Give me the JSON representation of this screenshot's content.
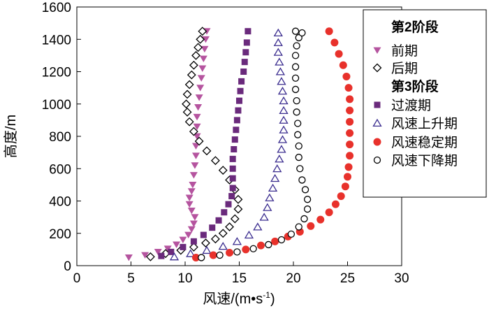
{
  "chart_data": {
    "type": "scatter",
    "xlabel_main": "风速/(m•s",
    "xlabel_sup": "-1",
    "xlabel_tail": ")",
    "ylabel": "高度/m",
    "xlim": [
      0,
      30
    ],
    "ylim": [
      0,
      1600
    ],
    "xticks": [
      0,
      5,
      10,
      15,
      20,
      25,
      30
    ],
    "yticks": [
      0,
      200,
      400,
      600,
      800,
      1000,
      1200,
      1400,
      1600
    ],
    "legend": {
      "position": "top-right",
      "groups": [
        {
          "heading": "第2阶段",
          "entries": [
            "前期",
            "后期"
          ]
        },
        {
          "heading": "第3阶段",
          "entries": [
            "过渡期",
            "风速上升期",
            "风速稳定期",
            "风速下降期"
          ]
        }
      ]
    },
    "series": [
      {
        "name": "前期",
        "marker": "triangle-down",
        "color": "#b5549f",
        "points": [
          [
            4.8,
            50
          ],
          [
            6.3,
            65
          ],
          [
            7.5,
            85
          ],
          [
            8.4,
            105
          ],
          [
            9.2,
            130
          ],
          [
            9.8,
            160
          ],
          [
            10.3,
            190
          ],
          [
            10.6,
            225
          ],
          [
            10.8,
            260
          ],
          [
            10.9,
            300
          ],
          [
            10.6,
            340
          ],
          [
            10.4,
            380
          ],
          [
            10.4,
            420
          ],
          [
            10.6,
            460
          ],
          [
            10.7,
            500
          ],
          [
            10.8,
            560
          ],
          [
            10.9,
            620
          ],
          [
            11.0,
            680
          ],
          [
            11.0,
            740
          ],
          [
            11.1,
            800
          ],
          [
            11.1,
            860
          ],
          [
            11.1,
            920
          ],
          [
            11.2,
            980
          ],
          [
            11.3,
            1040
          ],
          [
            11.4,
            1100
          ],
          [
            11.5,
            1160
          ],
          [
            11.6,
            1220
          ],
          [
            11.7,
            1280
          ],
          [
            11.8,
            1340
          ],
          [
            11.9,
            1400
          ],
          [
            12.0,
            1450
          ]
        ]
      },
      {
        "name": "后期",
        "marker": "diamond-open",
        "color": "#000000",
        "points": [
          [
            6.8,
            55
          ],
          [
            8.2,
            75
          ],
          [
            9.6,
            95
          ],
          [
            10.8,
            115
          ],
          [
            11.9,
            140
          ],
          [
            12.8,
            165
          ],
          [
            13.5,
            200
          ],
          [
            14.1,
            240
          ],
          [
            14.6,
            290
          ],
          [
            14.9,
            350
          ],
          [
            14.9,
            410
          ],
          [
            14.6,
            470
          ],
          [
            14.1,
            530
          ],
          [
            13.5,
            590
          ],
          [
            12.8,
            650
          ],
          [
            12.0,
            710
          ],
          [
            11.3,
            770
          ],
          [
            10.8,
            830
          ],
          [
            10.4,
            890
          ],
          [
            10.2,
            950
          ],
          [
            10.1,
            1000
          ],
          [
            10.2,
            1060
          ],
          [
            10.4,
            1120
          ],
          [
            10.6,
            1180
          ],
          [
            10.8,
            1240
          ],
          [
            11.0,
            1300
          ],
          [
            11.2,
            1350
          ],
          [
            11.4,
            1400
          ],
          [
            11.6,
            1450
          ]
        ]
      },
      {
        "name": "过渡期",
        "marker": "square",
        "color": "#6a2a7c",
        "points": [
          [
            7.8,
            60
          ],
          [
            8.7,
            85
          ],
          [
            9.8,
            115
          ],
          [
            10.8,
            150
          ],
          [
            11.7,
            190
          ],
          [
            12.5,
            235
          ],
          [
            13.1,
            280
          ],
          [
            13.6,
            330
          ],
          [
            14.0,
            380
          ],
          [
            14.3,
            430
          ],
          [
            14.4,
            480
          ],
          [
            14.4,
            540
          ],
          [
            14.4,
            600
          ],
          [
            14.4,
            660
          ],
          [
            14.5,
            720
          ],
          [
            14.6,
            780
          ],
          [
            14.7,
            840
          ],
          [
            14.8,
            900
          ],
          [
            14.9,
            960
          ],
          [
            15.0,
            1020
          ],
          [
            15.1,
            1080
          ],
          [
            15.2,
            1140
          ],
          [
            15.4,
            1200
          ],
          [
            15.5,
            1260
          ],
          [
            15.6,
            1320
          ],
          [
            15.7,
            1380
          ],
          [
            15.8,
            1450
          ]
        ]
      },
      {
        "name": "风速上升期",
        "marker": "triangle-open",
        "color": "#3b2d8f",
        "points": [
          [
            9.0,
            55
          ],
          [
            10.5,
            75
          ],
          [
            12.0,
            95
          ],
          [
            13.5,
            120
          ],
          [
            14.8,
            150
          ],
          [
            15.9,
            190
          ],
          [
            16.7,
            240
          ],
          [
            17.3,
            300
          ],
          [
            17.6,
            360
          ],
          [
            17.8,
            420
          ],
          [
            18.1,
            480
          ],
          [
            18.3,
            540
          ],
          [
            18.5,
            600
          ],
          [
            18.7,
            660
          ],
          [
            18.9,
            720
          ],
          [
            19.0,
            780
          ],
          [
            19.1,
            840
          ],
          [
            19.1,
            900
          ],
          [
            19.1,
            960
          ],
          [
            19.1,
            1020
          ],
          [
            19.0,
            1080
          ],
          [
            18.9,
            1140
          ],
          [
            18.8,
            1200
          ],
          [
            18.7,
            1260
          ],
          [
            18.6,
            1320
          ],
          [
            18.6,
            1380
          ],
          [
            18.6,
            1440
          ]
        ]
      },
      {
        "name": "风速稳定期",
        "marker": "circle-filled",
        "color": "#e8312b",
        "points": [
          [
            11.0,
            50
          ],
          [
            12.6,
            65
          ],
          [
            14.1,
            80
          ],
          [
            15.6,
            100
          ],
          [
            17.0,
            125
          ],
          [
            18.3,
            150
          ],
          [
            19.5,
            180
          ],
          [
            20.6,
            210
          ],
          [
            21.6,
            245
          ],
          [
            22.5,
            285
          ],
          [
            23.3,
            330
          ],
          [
            23.9,
            380
          ],
          [
            24.4,
            430
          ],
          [
            24.8,
            490
          ],
          [
            25.0,
            550
          ],
          [
            25.1,
            610
          ],
          [
            25.2,
            680
          ],
          [
            25.2,
            750
          ],
          [
            25.2,
            820
          ],
          [
            25.2,
            890
          ],
          [
            25.2,
            960
          ],
          [
            25.2,
            1030
          ],
          [
            25.1,
            1100
          ],
          [
            24.9,
            1170
          ],
          [
            24.6,
            1240
          ],
          [
            24.2,
            1310
          ],
          [
            23.8,
            1380
          ],
          [
            23.3,
            1450
          ]
        ]
      },
      {
        "name": "风速下降期",
        "marker": "circle-open",
        "color": "#000000",
        "points": [
          [
            11.5,
            50
          ],
          [
            13.2,
            65
          ],
          [
            14.8,
            85
          ],
          [
            16.3,
            105
          ],
          [
            17.7,
            130
          ],
          [
            18.9,
            160
          ],
          [
            19.8,
            195
          ],
          [
            20.5,
            240
          ],
          [
            21.0,
            290
          ],
          [
            21.3,
            350
          ],
          [
            21.3,
            410
          ],
          [
            21.1,
            470
          ],
          [
            20.8,
            530
          ],
          [
            20.6,
            600
          ],
          [
            20.5,
            670
          ],
          [
            20.5,
            740
          ],
          [
            20.4,
            810
          ],
          [
            20.4,
            880
          ],
          [
            20.3,
            950
          ],
          [
            20.3,
            1020
          ],
          [
            20.2,
            1090
          ],
          [
            20.2,
            1160
          ],
          [
            20.2,
            1230
          ],
          [
            20.2,
            1300
          ],
          [
            20.3,
            1360
          ],
          [
            20.5,
            1410
          ],
          [
            20.8,
            1440
          ],
          [
            20.2,
            1450
          ]
        ]
      }
    ]
  }
}
